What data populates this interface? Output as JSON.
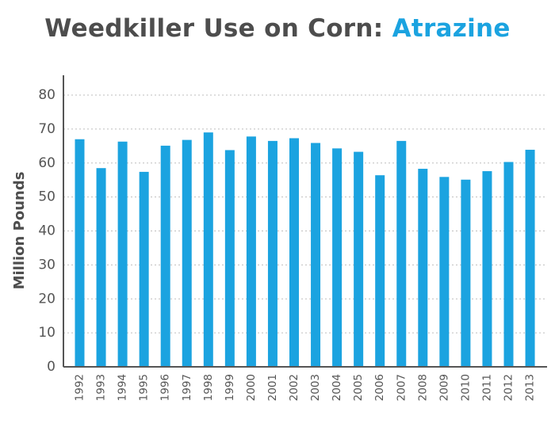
{
  "chart_data": {
    "type": "bar",
    "title": "Weedkiller Use on Corn:",
    "title_accent": "Atrazine",
    "ylabel": "Million Pounds",
    "xlabel": "",
    "ylim": [
      0,
      80
    ],
    "yticks": [
      0,
      10,
      20,
      30,
      40,
      50,
      60,
      70,
      80
    ],
    "grid": true,
    "bar_color": "#1ba3e0",
    "title_color": "#4d4d4d",
    "categories": [
      "1992",
      "1993",
      "1994",
      "1995",
      "1996",
      "1997",
      "1998",
      "1999",
      "2000",
      "2001",
      "2002",
      "2003",
      "2004",
      "2005",
      "2006",
      "2007",
      "2008",
      "2009",
      "2010",
      "2011",
      "2012",
      "2013"
    ],
    "values": [
      67,
      58.5,
      66.3,
      57.4,
      65.1,
      66.8,
      69,
      63.8,
      67.8,
      66.5,
      67.3,
      65.9,
      64.3,
      63.3,
      56.4,
      66.5,
      58.3,
      55.9,
      55.1,
      57.6,
      60.3,
      63.9
    ]
  }
}
